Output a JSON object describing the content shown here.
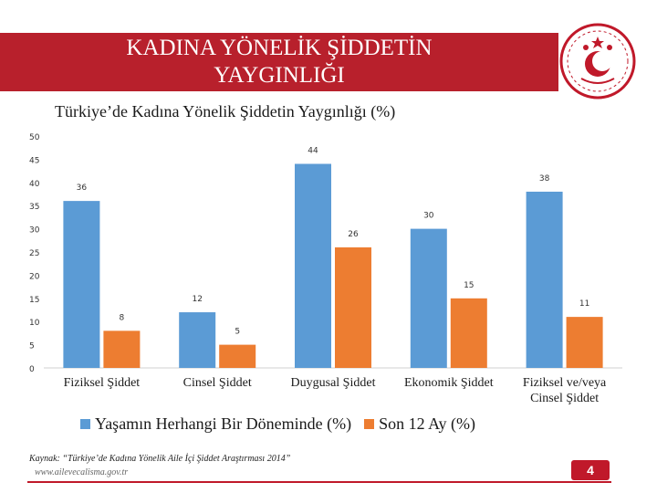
{
  "header": {
    "title_line1": "KADINA YÖNELİK ŞİDDETİN",
    "title_line2": "YAYGINLIĞI"
  },
  "colors": {
    "accent": "#b8202c",
    "series1": "#5b9bd5",
    "series2": "#ed7d31"
  },
  "chart_data": {
    "type": "bar",
    "title": "Türkiye’de Kadına Yönelik Şiddetin Yaygınlığı (%)",
    "categories": [
      "Fiziksel Şiddet",
      "Cinsel Şiddet",
      "Duygusal Şiddet",
      "Ekonomik Şiddet",
      "Fiziksel ve/veya Cinsel Şiddet"
    ],
    "series": [
      {
        "name": "Yaşamın Herhangi Bir Döneminde (%)",
        "values": [
          36,
          12,
          44,
          30,
          38
        ]
      },
      {
        "name": "Son 12 Ay (%)",
        "values": [
          8,
          5,
          26,
          15,
          11
        ]
      }
    ],
    "ylim": [
      0,
      50
    ],
    "yticks": [
      0,
      5,
      10,
      15,
      20,
      25,
      30,
      35,
      40,
      45,
      50
    ],
    "legend": "bottom",
    "grid": false
  },
  "footer": {
    "source": "Kaynak: “Türkiye’de Kadına Yönelik Aile İçi Şiddet Araştırması 2014”",
    "website": "www.ailevecalisma.gov.tr",
    "page_number": "4"
  }
}
